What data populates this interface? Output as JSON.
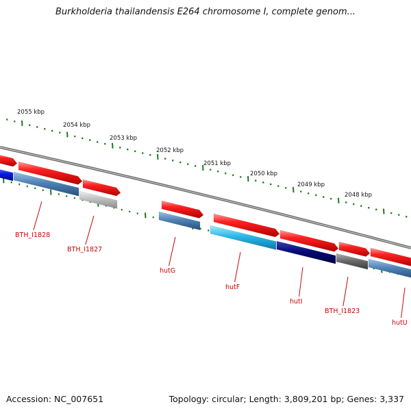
{
  "title": "Burkholderia thailandensis E264 chromosome I, complete genom...",
  "accession": "Accession: NC_007651",
  "summary": "Topology: circular; Length: 3,809,201 bp; Genes: 3,337",
  "colors": {
    "backbone": "#8a8a8a",
    "tick": "#1a7a1a",
    "forward_gene": "#e8141a",
    "gene_label": "#cc0000",
    "steelblue": "#4f82b5",
    "blue": "#0a1be0",
    "lightgray": "#bfbfbf",
    "cyan": "#2ab8e8",
    "navy": "#050a78",
    "darkgray": "#6b6b6b",
    "kbp_label": "#111111"
  },
  "kbp_labels": [
    "2055 kbp",
    "2054 kbp",
    "2053 kbp",
    "2052 kbp",
    "2051 kbp",
    "2050 kbp",
    "2049 kbp",
    "2048 kbp"
  ],
  "gene_labels": [
    "BTH_I1828",
    "BTH_I1827",
    "hutG",
    "hutF",
    "hutI",
    "BTH_I1823",
    "hutU"
  ]
}
